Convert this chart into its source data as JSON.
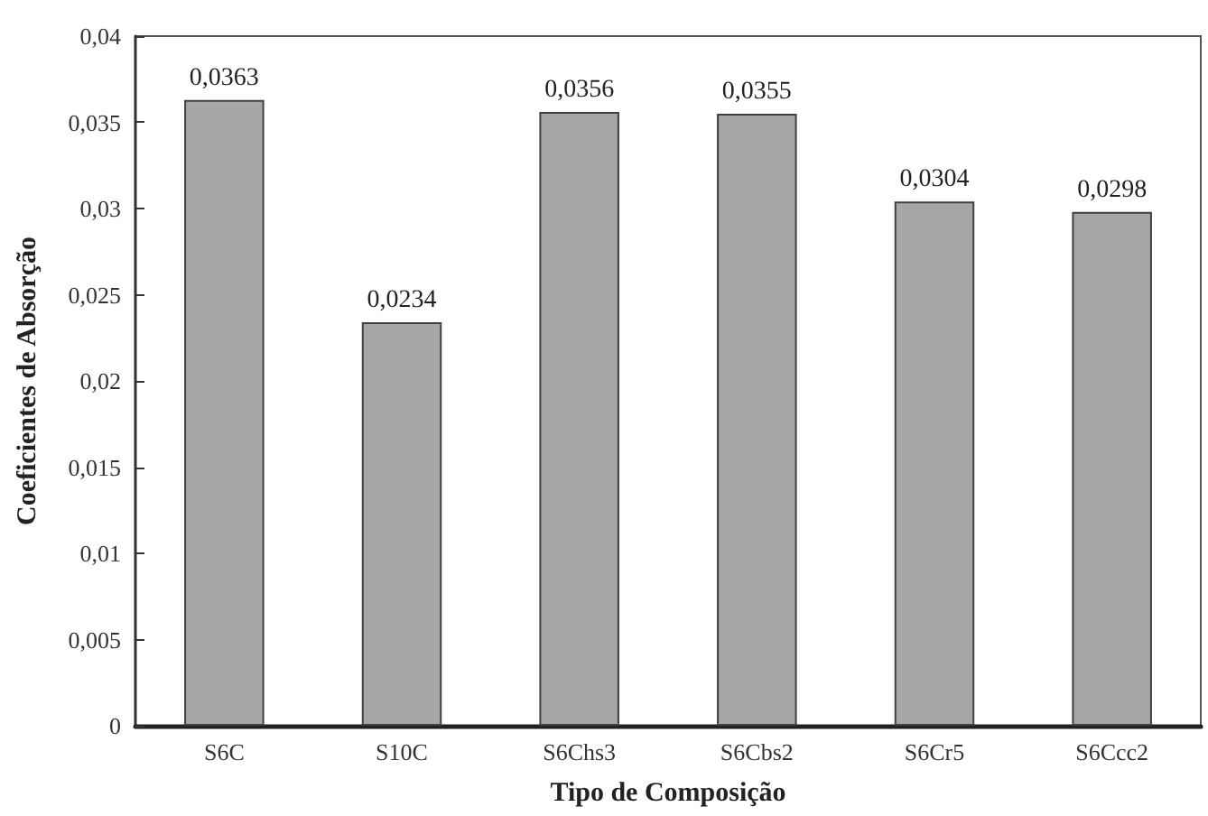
{
  "chart_data": {
    "type": "bar",
    "xlabel": "Tipo de Composição",
    "ylabel": "Coeficientes de Absorção",
    "categories": [
      "S6C",
      "S10C",
      "S6Chs3",
      "S6Cbs2",
      "S6Cr5",
      "S6Ccc2"
    ],
    "values": [
      0.0363,
      0.0234,
      0.0356,
      0.0355,
      0.0304,
      0.0298
    ],
    "value_labels": [
      "0,0363",
      "0,0234",
      "0,0356",
      "0,0355",
      "0,0304",
      "0,0298"
    ],
    "color": "#a6a6a6",
    "ylim": [
      0,
      0.04
    ],
    "yticks": [
      {
        "value": 0,
        "label": "0"
      },
      {
        "value": 0.005,
        "label": "0,005"
      },
      {
        "value": 0.01,
        "label": "0,01"
      },
      {
        "value": 0.015,
        "label": "0,015"
      },
      {
        "value": 0.02,
        "label": "0,02"
      },
      {
        "value": 0.025,
        "label": "0,025"
      },
      {
        "value": 0.03,
        "label": "0,03"
      },
      {
        "value": 0.035,
        "label": "0,035"
      },
      {
        "value": 0.04,
        "label": "0,04"
      }
    ],
    "grid": false
  }
}
